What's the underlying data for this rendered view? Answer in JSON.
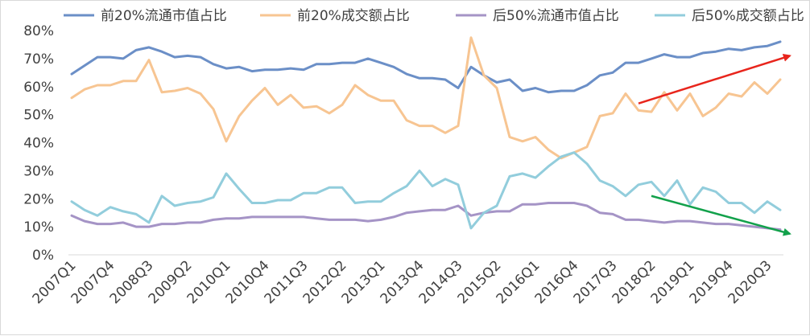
{
  "chart_data": {
    "type": "line",
    "title": "",
    "xlabel": "",
    "ylabel": "",
    "ylim": [
      0,
      80
    ],
    "y_ticks": [
      "0%",
      "10%",
      "20%",
      "30%",
      "40%",
      "50%",
      "60%",
      "70%",
      "80%"
    ],
    "y_unit": "%",
    "legend_position": "top",
    "grid": false,
    "x": [
      "2007Q1",
      "2007Q2",
      "2007Q3",
      "2007Q4",
      "2008Q1",
      "2008Q2",
      "2008Q3",
      "2008Q4",
      "2009Q1",
      "2009Q2",
      "2009Q3",
      "2009Q4",
      "2010Q1",
      "2010Q2",
      "2010Q3",
      "2010Q4",
      "2011Q1",
      "2011Q2",
      "2011Q3",
      "2011Q4",
      "2012Q1",
      "2012Q2",
      "2012Q3",
      "2012Q4",
      "2013Q1",
      "2013Q2",
      "2013Q3",
      "2013Q4",
      "2014Q1",
      "2014Q2",
      "2014Q3",
      "2014Q4",
      "2015Q1",
      "2015Q2",
      "2015Q3",
      "2015Q4",
      "2016Q1",
      "2016Q2",
      "2016Q3",
      "2016Q4",
      "2017Q1",
      "2017Q2",
      "2017Q3",
      "2017Q4",
      "2018Q1",
      "2018Q2",
      "2018Q3",
      "2018Q4",
      "2019Q1",
      "2019Q2",
      "2019Q3",
      "2019Q4",
      "2020Q1",
      "2020Q2",
      "2020Q3",
      "2020Q4"
    ],
    "x_tick_labels": [
      "2007Q1",
      "2007Q4",
      "2008Q3",
      "2009Q2",
      "2010Q1",
      "2010Q4",
      "2011Q3",
      "2012Q2",
      "2013Q1",
      "2013Q4",
      "2014Q3",
      "2015Q2",
      "2016Q1",
      "2016Q4",
      "2017Q3",
      "2018Q2",
      "2019Q1",
      "2019Q4",
      "2020Q3"
    ],
    "series": [
      {
        "name": "前20%流通市值占比",
        "color": "#6b8fc7",
        "values": [
          64.5,
          67.5,
          70.5,
          70.5,
          70,
          73,
          74,
          72.5,
          70.5,
          71,
          70.5,
          68,
          66.5,
          67,
          65.5,
          66,
          66,
          66.5,
          66,
          68,
          68,
          68.5,
          68.5,
          70,
          68.5,
          67,
          64.5,
          63,
          63,
          62.5,
          59.5,
          67,
          64,
          61.5,
          62.5,
          58.5,
          59.5,
          58,
          58.5,
          58.5,
          60.5,
          64,
          65,
          68.5,
          68.5,
          70,
          71.5,
          70.5,
          70.5,
          72,
          72.5,
          73.5,
          73,
          74,
          74.5,
          76
        ]
      },
      {
        "name": "前20%成交额占比",
        "color": "#f7c592",
        "values": [
          56,
          59,
          60.5,
          60.5,
          62,
          62,
          69.5,
          58,
          58.5,
          59.5,
          57.5,
          52,
          40.5,
          49.5,
          55,
          59.5,
          53.5,
          57,
          52.5,
          53,
          50.5,
          53.5,
          60.5,
          57,
          55,
          55,
          48,
          46,
          46,
          43.5,
          46,
          77.5,
          64,
          59.5,
          42,
          40.5,
          42,
          37.5,
          34.5,
          36.5,
          38.5,
          49.5,
          50.5,
          57.5,
          51.5,
          51,
          58,
          51.5,
          57.5,
          49.5,
          52.5,
          57.5,
          56.5,
          61.5,
          57.5,
          62.5
        ]
      },
      {
        "name": "后50%流通市值占比",
        "color": "#a594c6",
        "values": [
          14,
          12,
          11,
          11,
          11.5,
          10,
          10,
          11,
          11,
          11.5,
          11.5,
          12.5,
          13,
          13,
          13.5,
          13.5,
          13.5,
          13.5,
          13.5,
          13,
          12.5,
          12.5,
          12.5,
          12,
          12.5,
          13.5,
          15,
          15.5,
          16,
          16,
          17.5,
          14,
          15,
          15.5,
          15.5,
          18,
          18,
          18.5,
          18.5,
          18.5,
          17.5,
          15,
          14.5,
          12.5,
          12.5,
          12,
          11.5,
          12,
          12,
          11.5,
          11,
          11,
          10.5,
          10,
          9.5,
          9
        ]
      },
      {
        "name": "后50%成交额占比",
        "color": "#92cddc",
        "values": [
          19,
          16,
          14,
          17,
          15.5,
          14.5,
          11.5,
          21,
          17.5,
          18.5,
          19,
          20.5,
          29,
          23.5,
          18.5,
          18.5,
          19.5,
          19.5,
          22,
          22,
          24,
          24,
          18.5,
          19,
          19,
          22,
          24.5,
          30,
          24.5,
          27,
          25,
          9.5,
          15,
          17.5,
          28,
          29,
          27.5,
          31.5,
          35,
          36.5,
          32.5,
          26.5,
          24.5,
          21,
          25,
          26,
          21,
          26.5,
          18,
          24,
          22.5,
          18.5,
          18.5,
          15,
          19,
          16
        ]
      }
    ],
    "annotations": [
      {
        "type": "arrow",
        "color": "#e8251c",
        "from": {
          "x": "2018Q1",
          "y": 54
        },
        "to": {
          "x": "2020Q4",
          "y": 71
        }
      },
      {
        "type": "arrow",
        "color": "#12a14b",
        "from": {
          "x": "2018Q2",
          "y": 21
        },
        "to": {
          "x": "2020Q4",
          "y": 7.5
        }
      }
    ]
  }
}
